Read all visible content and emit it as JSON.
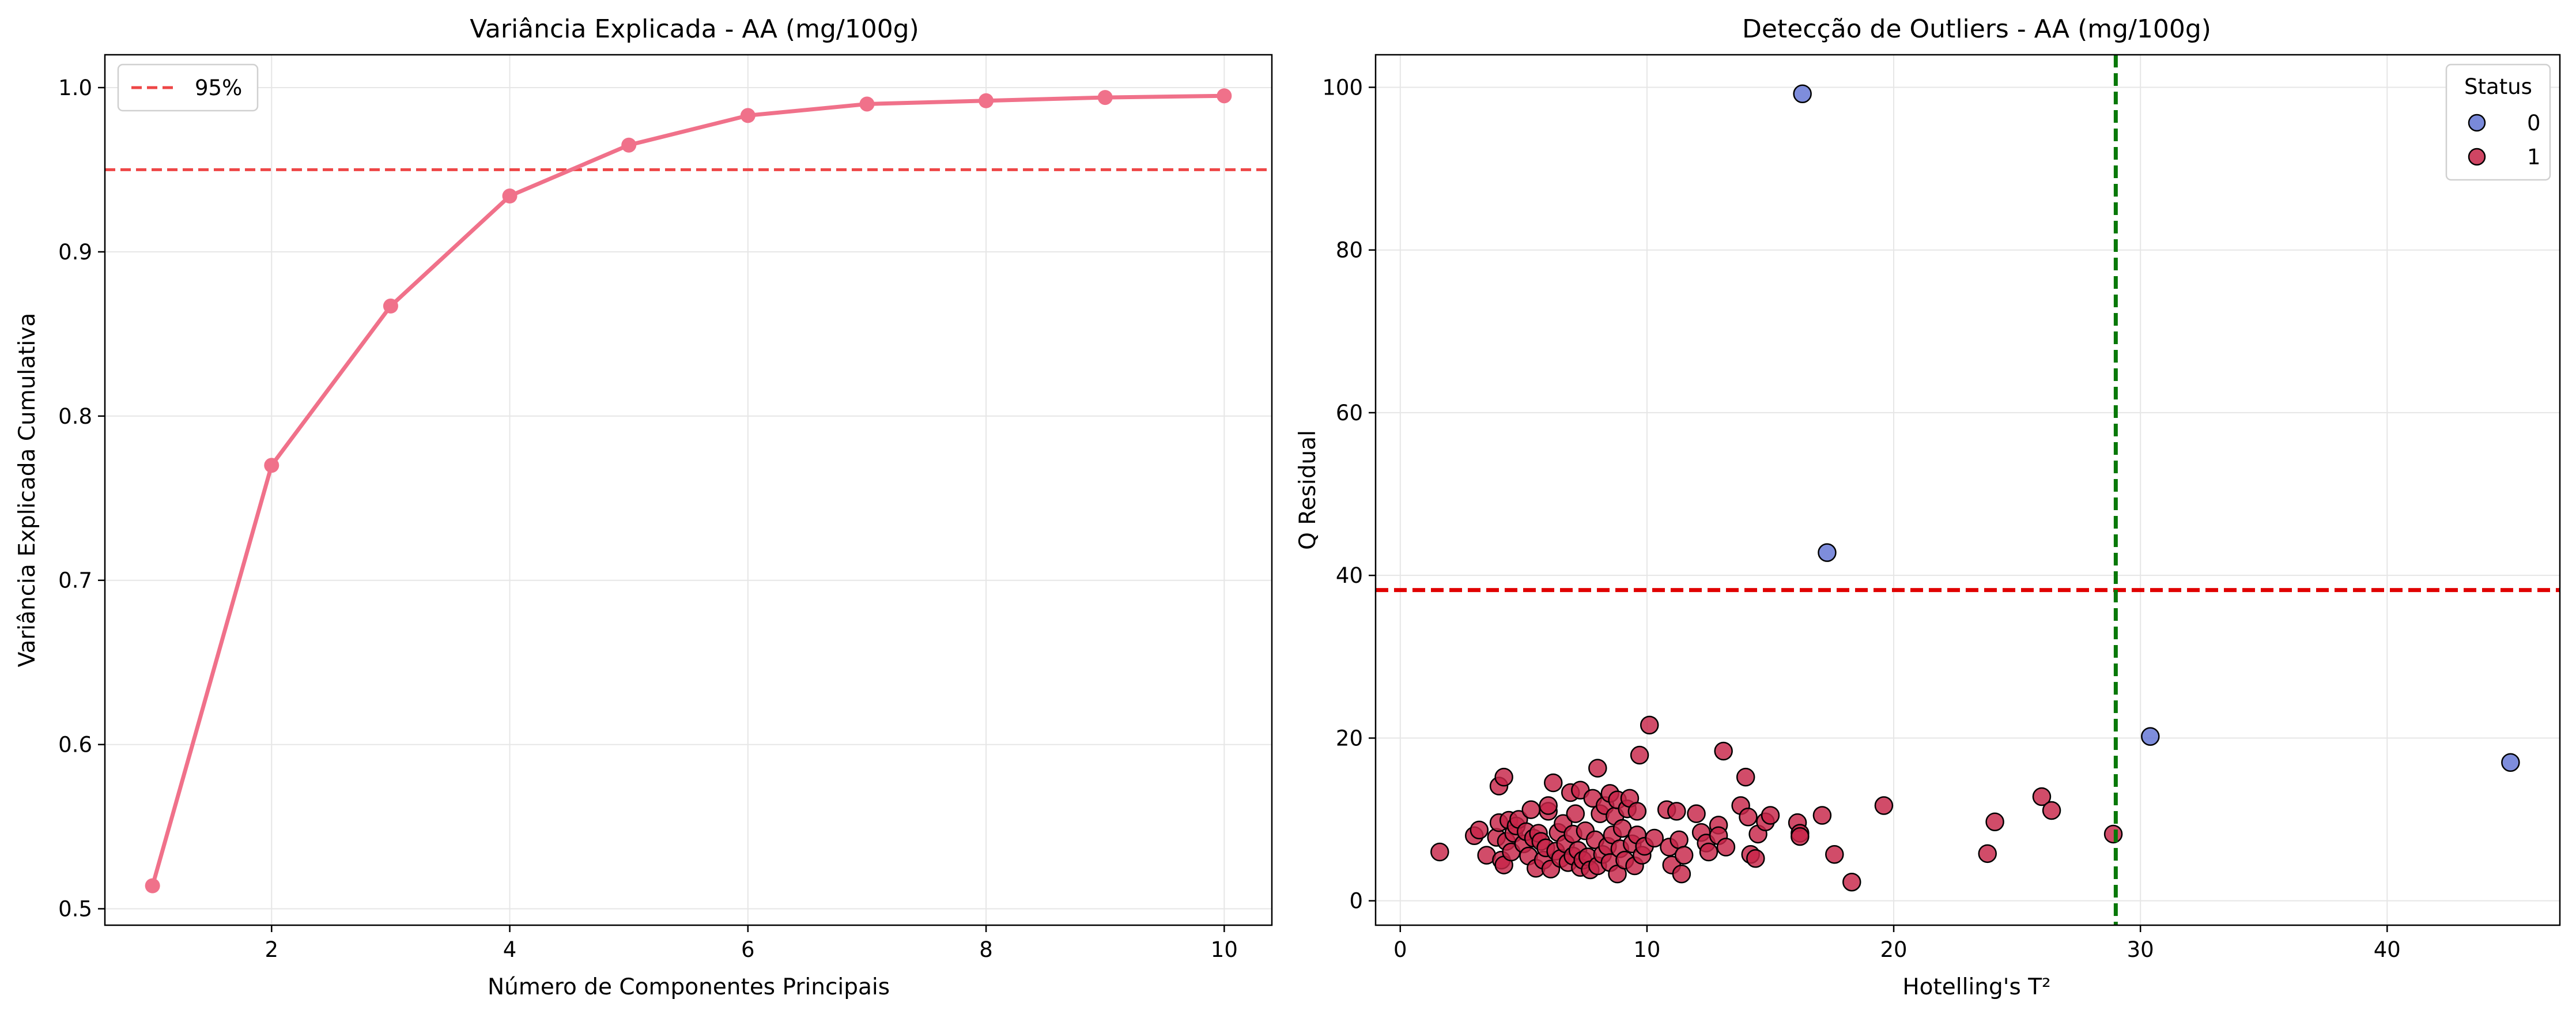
{
  "chart_data": [
    {
      "type": "line",
      "title": "Variância Explicada - AA (mg/100g)",
      "xlabel": "Número de Componentes Principais",
      "ylabel": "Variância Explicada Cumulativa",
      "xlim": [
        0.6,
        10.4
      ],
      "ylim": [
        0.49,
        1.02
      ],
      "xticks": [
        2,
        4,
        6,
        8,
        10
      ],
      "yticks": [
        0.5,
        0.6,
        0.7,
        0.8,
        0.9,
        1.0
      ],
      "grid": true,
      "legend_position": "top-left",
      "line_color": "#f0718a",
      "series": [
        {
          "x": [
            1,
            2,
            3,
            4,
            5,
            6,
            7,
            8,
            9,
            10
          ],
          "values": [
            0.514,
            0.77,
            0.867,
            0.934,
            0.965,
            0.983,
            0.99,
            0.992,
            0.994,
            0.995
          ]
        }
      ],
      "threshold": {
        "name": "95%",
        "y": 0.95,
        "color": "#ee4646",
        "style": "dashed"
      }
    },
    {
      "type": "scatter",
      "title": "Detecção de Outliers - AA (mg/100g)",
      "xlabel": "Hotelling's T²",
      "ylabel": "Q Residual",
      "xlim": [
        -1,
        47
      ],
      "ylim": [
        -3,
        104
      ],
      "xticks": [
        0,
        10,
        20,
        30,
        40
      ],
      "yticks": [
        0,
        20,
        40,
        60,
        80,
        100
      ],
      "grid": true,
      "legend_title": "Status",
      "legend_position": "top-right",
      "t2_limit": {
        "x": 29.0,
        "color": "#087808"
      },
      "q_limit": {
        "y": 38.2,
        "color": "#e00000"
      },
      "series": [
        {
          "name": "0",
          "color": "#6274d4",
          "points": [
            [
              16.3,
              99.2
            ],
            [
              17.3,
              42.8
            ],
            [
              30.4,
              20.2
            ],
            [
              45.0,
              17.0
            ]
          ]
        },
        {
          "name": "1",
          "color": "#c72448",
          "points": [
            [
              1.6,
              6.0
            ],
            [
              3.0,
              8.0
            ],
            [
              3.2,
              8.7
            ],
            [
              3.5,
              5.6
            ],
            [
              3.9,
              7.8
            ],
            [
              4.0,
              14.1
            ],
            [
              4.2,
              15.2
            ],
            [
              4.0,
              9.6
            ],
            [
              4.1,
              5.0
            ],
            [
              4.2,
              4.4
            ],
            [
              4.3,
              7.3
            ],
            [
              4.4,
              9.9
            ],
            [
              4.5,
              6.0
            ],
            [
              4.6,
              8.3
            ],
            [
              4.7,
              9.2
            ],
            [
              4.8,
              10.0
            ],
            [
              5.0,
              7.0
            ],
            [
              5.1,
              8.5
            ],
            [
              5.2,
              5.5
            ],
            [
              5.3,
              11.2
            ],
            [
              5.4,
              7.7
            ],
            [
              5.5,
              4.0
            ],
            [
              5.6,
              8.3
            ],
            [
              5.7,
              7.3
            ],
            [
              5.8,
              5.0
            ],
            [
              5.9,
              6.5
            ],
            [
              6.0,
              11.0
            ],
            [
              6.0,
              11.7
            ],
            [
              6.1,
              3.9
            ],
            [
              6.2,
              14.5
            ],
            [
              6.3,
              6.1
            ],
            [
              6.4,
              8.4
            ],
            [
              6.5,
              5.2
            ],
            [
              6.6,
              9.5
            ],
            [
              6.7,
              7.0
            ],
            [
              6.8,
              4.7
            ],
            [
              6.9,
              13.3
            ],
            [
              7.0,
              5.5
            ],
            [
              7.0,
              8.2
            ],
            [
              7.1,
              10.7
            ],
            [
              7.2,
              6.2
            ],
            [
              7.3,
              4.1
            ],
            [
              7.3,
              13.6
            ],
            [
              7.4,
              5.0
            ],
            [
              7.5,
              8.6
            ],
            [
              7.6,
              5.4
            ],
            [
              7.7,
              3.8
            ],
            [
              7.8,
              12.6
            ],
            [
              7.9,
              7.5
            ],
            [
              8.0,
              16.3
            ],
            [
              8.0,
              4.3
            ],
            [
              8.1,
              10.7
            ],
            [
              8.2,
              5.7
            ],
            [
              8.3,
              11.7
            ],
            [
              8.4,
              6.7
            ],
            [
              8.5,
              13.2
            ],
            [
              8.5,
              4.7
            ],
            [
              8.6,
              8.1
            ],
            [
              8.7,
              10.4
            ],
            [
              8.8,
              3.3
            ],
            [
              8.8,
              12.4
            ],
            [
              8.9,
              6.4
            ],
            [
              9.0,
              8.9
            ],
            [
              9.1,
              5.0
            ],
            [
              9.2,
              11.3
            ],
            [
              9.3,
              12.6
            ],
            [
              9.4,
              7.0
            ],
            [
              9.5,
              4.3
            ],
            [
              9.6,
              11.0
            ],
            [
              9.6,
              8.1
            ],
            [
              9.7,
              17.9
            ],
            [
              9.8,
              5.6
            ],
            [
              9.9,
              6.7
            ],
            [
              10.1,
              21.6
            ],
            [
              10.3,
              7.7
            ],
            [
              10.8,
              11.2
            ],
            [
              10.9,
              6.6
            ],
            [
              11.0,
              4.4
            ],
            [
              11.2,
              11.0
            ],
            [
              11.3,
              7.5
            ],
            [
              11.4,
              3.3
            ],
            [
              11.5,
              5.6
            ],
            [
              12.0,
              10.7
            ],
            [
              12.2,
              8.4
            ],
            [
              12.4,
              7.1
            ],
            [
              12.5,
              6.0
            ],
            [
              12.9,
              9.3
            ],
            [
              12.9,
              8.0
            ],
            [
              13.1,
              18.4
            ],
            [
              13.2,
              6.6
            ],
            [
              13.8,
              11.7
            ],
            [
              14.0,
              15.2
            ],
            [
              14.1,
              10.3
            ],
            [
              14.2,
              5.7
            ],
            [
              14.4,
              5.2
            ],
            [
              14.5,
              8.2
            ],
            [
              14.8,
              9.7
            ],
            [
              15.0,
              10.5
            ],
            [
              16.1,
              9.6
            ],
            [
              16.2,
              8.3
            ],
            [
              16.2,
              7.9
            ],
            [
              17.1,
              10.5
            ],
            [
              17.6,
              5.7
            ],
            [
              18.3,
              2.3
            ],
            [
              19.6,
              11.7
            ],
            [
              23.8,
              5.8
            ],
            [
              24.1,
              9.7
            ],
            [
              26.0,
              12.8
            ],
            [
              26.4,
              11.1
            ],
            [
              28.9,
              8.2
            ]
          ]
        }
      ]
    }
  ]
}
